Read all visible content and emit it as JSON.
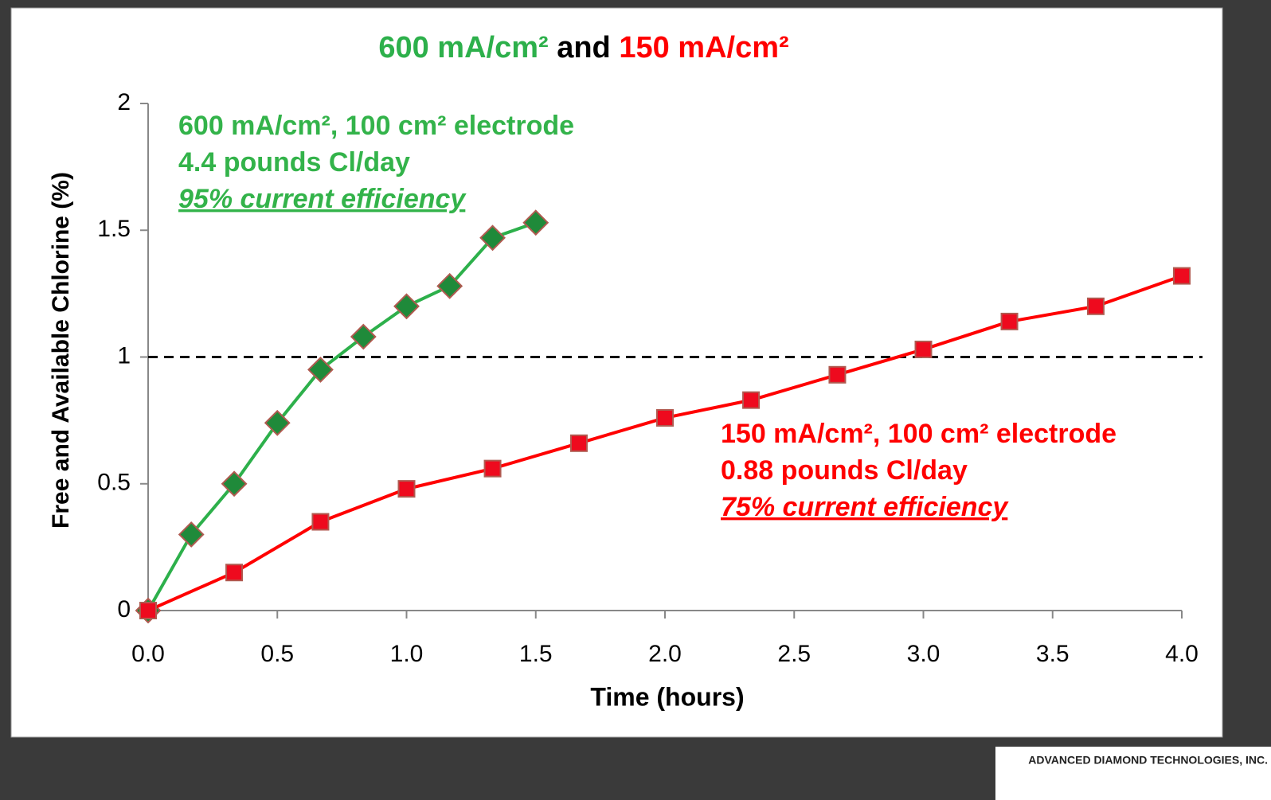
{
  "chart_data": {
    "type": "line",
    "title": [
      {
        "text": "600 mA/cm²",
        "color": "#2db04b"
      },
      {
        "text": " and ",
        "color": "#000000"
      },
      {
        "text": "150 mA/cm²",
        "color": "#ff0000"
      }
    ],
    "x_label": "Time (hours)",
    "y_label": "Free and Available Chlorine (%)",
    "xlim": [
      0,
      4
    ],
    "ylim": [
      0,
      2
    ],
    "xticks": [
      {
        "value": 0,
        "label": "0.0"
      },
      0.5,
      {
        "value": 1,
        "label": "1.0"
      },
      1.5,
      {
        "value": 2,
        "label": "2.0"
      },
      2.5,
      {
        "value": 3,
        "label": "3.0"
      },
      3.5,
      {
        "value": 4,
        "label": "4.0"
      }
    ],
    "yticks": [
      0,
      0.5,
      1,
      1.5,
      2
    ],
    "reference_lines": [
      {
        "value": 1,
        "color": "#000000"
      }
    ],
    "series": [
      {
        "name": "600 mA/cm²",
        "color": "#2db04b",
        "marker": "diamond",
        "marker_color": "#1f8a3a",
        "x": [
          0,
          0.167,
          0.333,
          0.5,
          0.667,
          0.833,
          1.0,
          1.167,
          1.333,
          1.5
        ],
        "values": [
          0,
          0.3,
          0.5,
          0.74,
          0.95,
          1.08,
          1.2,
          1.28,
          1.47,
          1.53
        ]
      },
      {
        "name": "150 mA/cm²",
        "color": "#ff0000",
        "marker": "square",
        "marker_color": "#ee0a1e",
        "x": [
          0,
          0.333,
          0.667,
          1.0,
          1.333,
          1.667,
          2.0,
          2.333,
          2.667,
          3.0,
          3.333,
          3.667,
          4.0
        ],
        "values": [
          0,
          0.15,
          0.35,
          0.48,
          0.56,
          0.66,
          0.76,
          0.83,
          0.93,
          1.03,
          1.14,
          1.2,
          1.32
        ]
      }
    ],
    "annotations": [
      {
        "color": "#33b34a",
        "lines": [
          "600 mA/cm², 100 cm² electrode",
          "4.4 pounds Cl/day",
          "95% current efficiency"
        ]
      },
      {
        "color": "#ff0000",
        "lines": [
          "150 mA/cm², 100 cm² electrode",
          "0.88 pounds Cl/day",
          "75% current efficiency"
        ]
      }
    ]
  },
  "footer": {
    "logo": "ADVANCED DIAMOND TECHNOLOGIES, INC."
  }
}
